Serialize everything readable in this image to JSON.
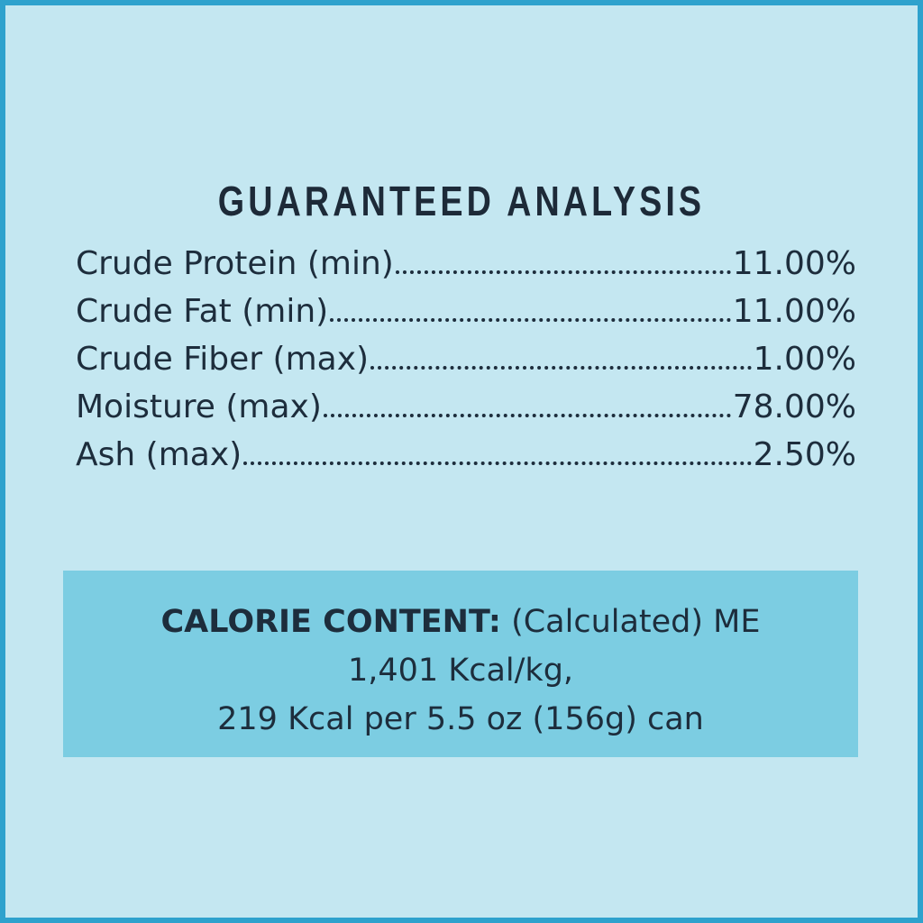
{
  "title": "GUARANTEED ANALYSIS",
  "rows": [
    {
      "label": "Crude Protein (min)",
      "value": "11.00%"
    },
    {
      "label": "Crude Fat (min)",
      "value": "11.00%"
    },
    {
      "label": "Crude Fiber (max)",
      "value": "1.00%"
    },
    {
      "label": "Moisture (max)",
      "value": "78.00%"
    },
    {
      "label": "Ash (max)",
      "value": "2.50%"
    }
  ],
  "calorie": {
    "heading": "CALORIE CONTENT:",
    "line1": "(Calculated) ME",
    "line2": "1,401 Kcal/kg,",
    "line3": "219 Kcal per 5.5 oz (156g) can"
  }
}
